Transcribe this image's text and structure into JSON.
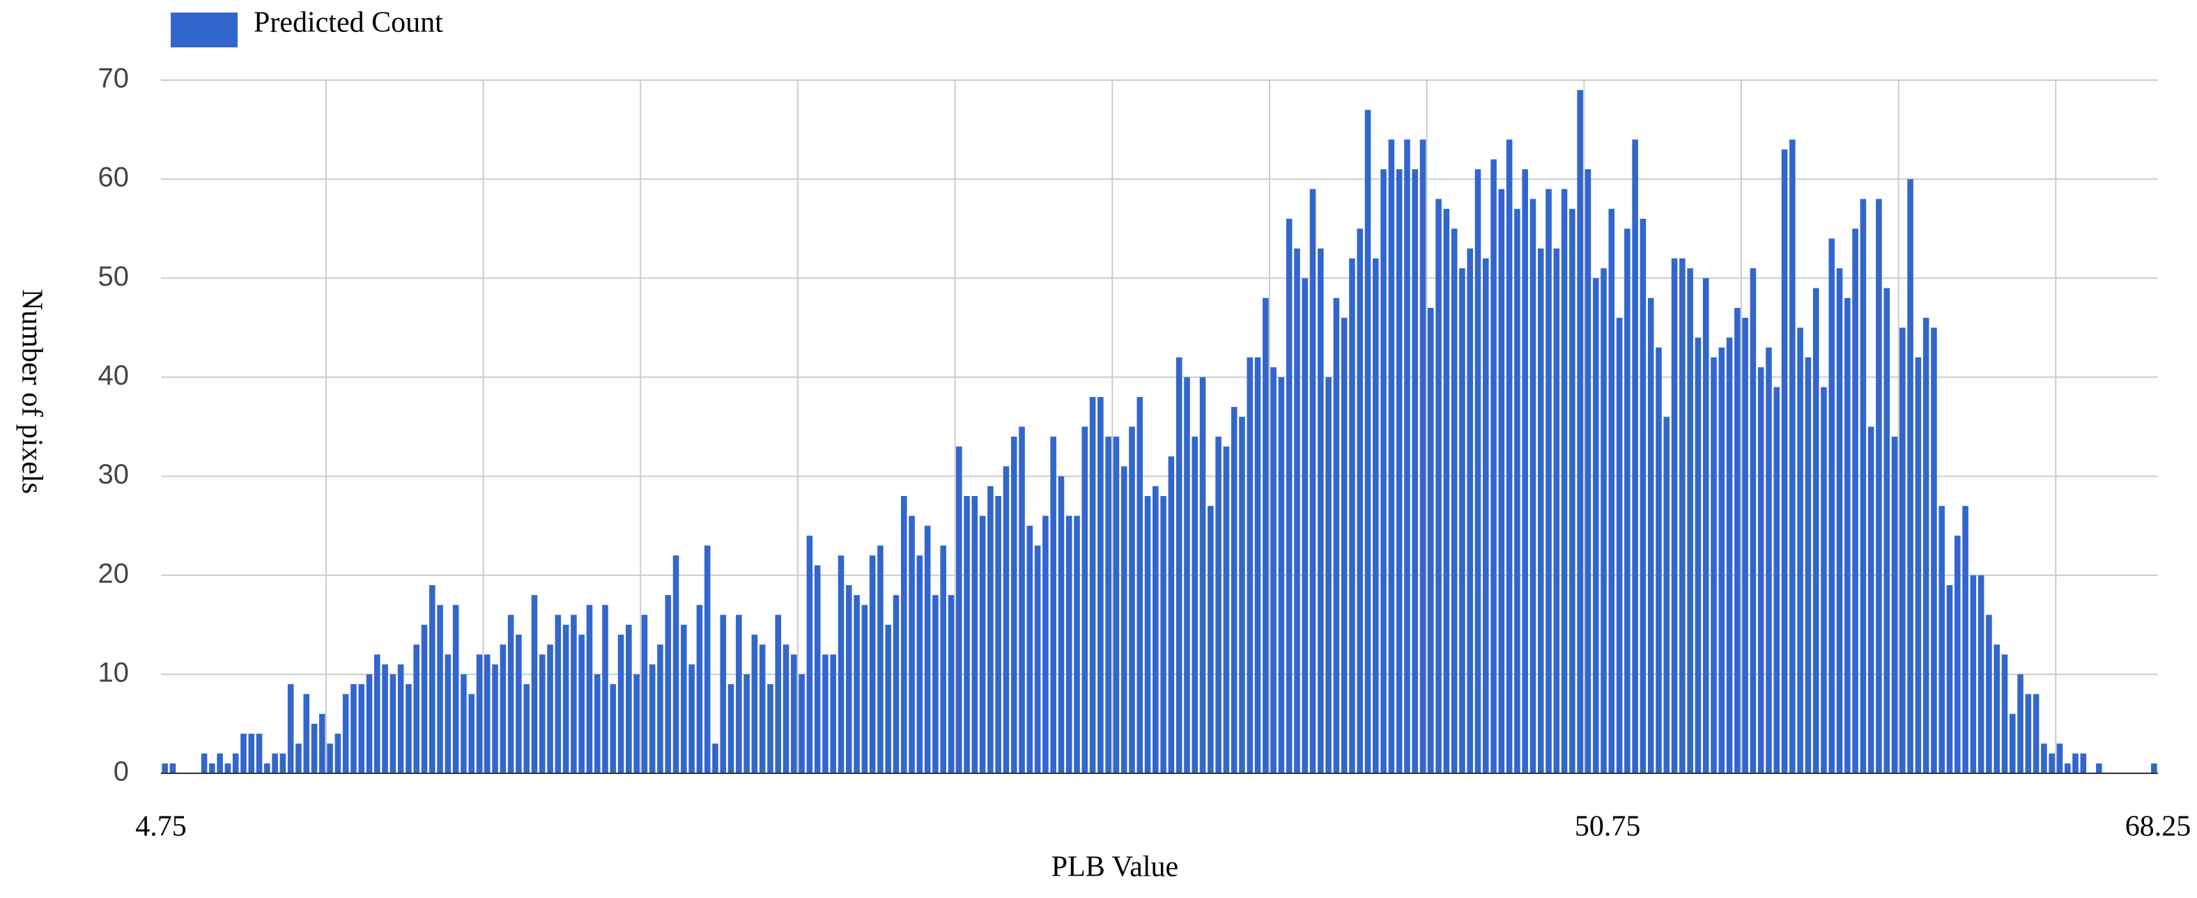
{
  "chart_data": {
    "type": "histogram",
    "xlabel": "PLB Value",
    "ylabel": "Number of pixels",
    "bins": [
      4.75,
      5,
      5.25,
      5.5,
      5.75,
      6,
      6.25,
      6.5,
      6.75,
      7,
      7.25,
      7.5,
      7.75,
      8,
      8.25,
      8.5,
      8.75,
      9,
      9.25,
      9.5,
      9.75,
      10,
      10.25,
      10.5,
      10.75,
      11,
      11.25,
      11.5,
      11.75,
      12,
      12.25,
      12.5,
      12.75,
      13,
      13.25,
      13.5,
      13.75,
      14,
      14.25,
      14.5,
      14.75,
      15,
      15.25,
      15.5,
      15.75,
      16,
      16.25,
      16.5,
      16.75,
      17,
      17.25,
      17.5,
      17.75,
      18,
      18.25,
      18.5,
      18.75,
      19,
      19.25,
      19.5,
      19.75,
      20,
      20.25,
      20.5,
      20.75,
      21,
      21.25,
      21.5,
      21.75,
      22,
      22.25,
      22.5,
      22.75,
      23,
      23.25,
      23.5,
      23.75,
      24,
      24.25,
      24.5,
      24.75,
      25,
      25.25,
      25.5,
      25.75,
      26,
      26.25,
      26.5,
      26.75,
      27,
      27.25,
      27.5,
      27.75,
      28,
      28.25,
      28.5,
      28.75,
      29,
      29.25,
      29.5,
      29.75,
      30,
      30.25,
      30.5,
      30.75,
      31,
      31.25,
      31.5,
      31.75,
      32,
      32.25,
      32.5,
      32.75,
      33,
      33.25,
      33.5,
      33.75,
      34,
      34.25,
      34.5,
      34.75,
      35,
      35.25,
      35.5,
      35.75,
      36,
      36.25,
      36.5,
      36.75,
      37,
      37.25,
      37.5,
      37.75,
      38,
      38.25,
      38.5,
      38.75,
      39,
      39.25,
      39.5,
      39.75,
      40,
      40.25,
      40.5,
      40.75,
      41,
      41.25,
      41.5,
      41.75,
      42,
      42.25,
      42.5,
      42.75,
      43,
      43.25,
      43.5,
      43.75,
      44,
      44.25,
      44.5,
      44.75,
      45,
      45.25,
      45.5,
      45.75,
      46,
      46.25,
      46.5,
      46.75,
      47,
      47.25,
      47.5,
      47.75,
      48,
      48.25,
      48.5,
      48.75,
      49,
      49.25,
      49.5,
      49.75,
      50,
      50.25,
      50.5,
      50.75,
      51,
      51.25,
      51.5,
      51.75,
      52,
      52.25,
      52.5,
      52.75,
      53,
      53.25,
      53.5,
      53.75,
      54,
      54.25,
      54.5,
      54.75,
      55,
      55.25,
      55.5,
      55.75,
      56,
      56.25,
      56.5,
      56.75,
      57,
      57.25,
      57.5,
      57.75,
      58,
      58.25,
      58.5,
      58.75,
      59,
      59.25,
      59.5,
      59.75,
      60,
      60.25,
      60.5,
      60.75,
      61,
      61.25,
      61.5,
      61.75,
      62,
      62.25,
      62.5,
      62.75,
      63,
      63.25,
      63.5,
      63.75,
      64,
      64.25,
      64.5,
      64.75,
      65,
      65.25,
      65.5,
      65.75,
      66,
      66.25,
      66.5,
      66.75,
      67,
      67.25,
      67.5,
      67.75,
      68,
      68.25
    ],
    "series": [
      {
        "name": "Predicted Count",
        "color": "#3366cc",
        "values": [
          1,
          1,
          0,
          0,
          0,
          2,
          1,
          2,
          1,
          2,
          4,
          4,
          4,
          1,
          2,
          2,
          9,
          3,
          8,
          5,
          6,
          3,
          4,
          8,
          9,
          9,
          10,
          12,
          11,
          10,
          11,
          9,
          13,
          15,
          19,
          17,
          12,
          17,
          10,
          8,
          12,
          12,
          11,
          13,
          16,
          14,
          9,
          18,
          12,
          13,
          16,
          15,
          16,
          14,
          17,
          10,
          17,
          9,
          14,
          15,
          10,
          16,
          11,
          13,
          18,
          22,
          15,
          11,
          17,
          23,
          3,
          16,
          9,
          16,
          10,
          14,
          13,
          9,
          16,
          13,
          12,
          10,
          24,
          21,
          12,
          12,
          22,
          19,
          18,
          17,
          22,
          23,
          15,
          18,
          28,
          26,
          22,
          25,
          18,
          23,
          18,
          33,
          28,
          28,
          26,
          29,
          28,
          31,
          34,
          35,
          25,
          23,
          26,
          34,
          30,
          26,
          26,
          35,
          38,
          38,
          34,
          34,
          31,
          35,
          38,
          28,
          29,
          28,
          32,
          42,
          40,
          34,
          40,
          27,
          34,
          33,
          37,
          36,
          42,
          42,
          48,
          41,
          40,
          56,
          53,
          50,
          59,
          53,
          40,
          48,
          46,
          52,
          55,
          67,
          52,
          61,
          64,
          61,
          64,
          61,
          64,
          47,
          58,
          57,
          55,
          51,
          53,
          61,
          52,
          62,
          59,
          64,
          57,
          61,
          58,
          53,
          59,
          53,
          59,
          57,
          69,
          61,
          50,
          51,
          57,
          46,
          55,
          64,
          56,
          48,
          43,
          36,
          52,
          52,
          51,
          44,
          50,
          42,
          43,
          44,
          47,
          46,
          51,
          41,
          43,
          39,
          63,
          64,
          45,
          42,
          49,
          39,
          54,
          51,
          48,
          55,
          58,
          35,
          58,
          49,
          34,
          45,
          60,
          42,
          46,
          45,
          27,
          19,
          24,
          27,
          20,
          20,
          16,
          13,
          12,
          6,
          10,
          8,
          8,
          3,
          2,
          3,
          1,
          2,
          2,
          0,
          1,
          0,
          0,
          0,
          0,
          0,
          0,
          1
        ]
      }
    ],
    "xlim": [
      4.75,
      68.25
    ],
    "xticks": [
      4.75,
      50.75,
      68.25
    ],
    "xgrid": [
      10,
      15,
      20,
      25,
      30,
      35,
      40,
      45,
      50,
      55,
      60,
      65
    ],
    "ylim": [
      0,
      70
    ],
    "yticks": [
      0,
      10,
      20,
      30,
      40,
      50,
      60,
      70
    ],
    "grid": true
  }
}
